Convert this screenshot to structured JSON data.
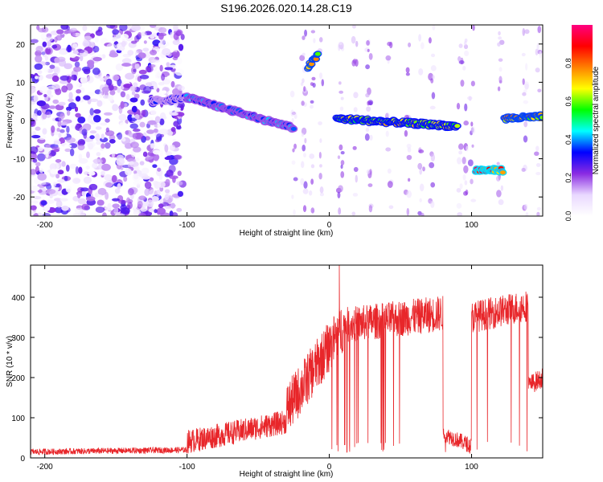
{
  "title": "S196.2026.020.14.28.C19",
  "chart_data": [
    {
      "type": "heatmap",
      "xlabel": "Height of straight line (km)",
      "ylabel": "Frequency (Hz)",
      "xlim": [
        -210,
        150
      ],
      "ylim": [
        -25,
        25
      ],
      "xticks": [
        -200,
        -100,
        0,
        100
      ],
      "yticks": [
        -20,
        -10,
        0,
        10,
        20
      ],
      "colorbar": {
        "label": "Normalized spectral amplitude",
        "range": [
          0,
          1
        ],
        "ticks": [
          "0.0",
          "0.2",
          "0.4",
          "0.6",
          "0.8"
        ],
        "colors": [
          "#ffffff",
          "#e9d8ff",
          "#8a2be2",
          "#0000ff",
          "#00ffff",
          "#00ff00",
          "#ffff00",
          "#ff8000",
          "#ff0000",
          "#ff0080"
        ]
      },
      "features": [
        {
          "name": "noise-field",
          "x_range": [
            -210,
            -103
          ],
          "freq_range": [
            -25,
            25
          ],
          "amplitude": 0.15
        },
        {
          "name": "track-a",
          "x": [
            -125,
            -100
          ],
          "freq": [
            5,
            6
          ],
          "amplitude": 0.35
        },
        {
          "name": "track-b",
          "x": [
            -100,
            -25
          ],
          "freq": [
            6,
            -2
          ],
          "amplitude": 0.45
        },
        {
          "name": "track-c",
          "x": [
            -15,
            -8
          ],
          "freq": [
            14,
            17
          ],
          "amplitude": 0.8
        },
        {
          "name": "track-d",
          "x": [
            5,
            90
          ],
          "freq": [
            0.5,
            -1.5
          ],
          "amplitude": 0.75
        },
        {
          "name": "track-e",
          "x": [
            103,
            122
          ],
          "freq": [
            -13,
            -13
          ],
          "amplitude": 0.95
        },
        {
          "name": "track-f",
          "x": [
            123,
            150
          ],
          "freq": [
            0.5,
            1
          ],
          "amplitude": 0.8
        }
      ]
    },
    {
      "type": "line",
      "xlabel": "Height of straight line (km)",
      "ylabel": "SNR (10 * v/v)",
      "xlim": [
        -210,
        150
      ],
      "ylim": [
        0,
        480
      ],
      "xticks": [
        -200,
        -100,
        0,
        100
      ],
      "yticks": [
        0,
        100,
        200,
        300,
        400
      ],
      "color": "#e8262a",
      "segments": [
        {
          "x": [
            -210,
            -100
          ],
          "level": [
            15,
            20
          ],
          "noise": 15
        },
        {
          "x": [
            -100,
            -30
          ],
          "level": [
            40,
            90
          ],
          "noise": 60
        },
        {
          "x": [
            -30,
            10
          ],
          "level": [
            120,
            330
          ],
          "noise": 130
        },
        {
          "x": [
            10,
            80
          ],
          "level": [
            330,
            360
          ],
          "noise": 90
        },
        {
          "x": [
            80,
            100
          ],
          "level": [
            60,
            30
          ],
          "noise": 40
        },
        {
          "x": [
            100,
            140
          ],
          "level": [
            350,
            380
          ],
          "noise": 80
        },
        {
          "x": [
            140,
            150
          ],
          "level": [
            180,
            200
          ],
          "noise": 50
        }
      ],
      "peak": {
        "x": 7,
        "y": 480
      }
    }
  ]
}
